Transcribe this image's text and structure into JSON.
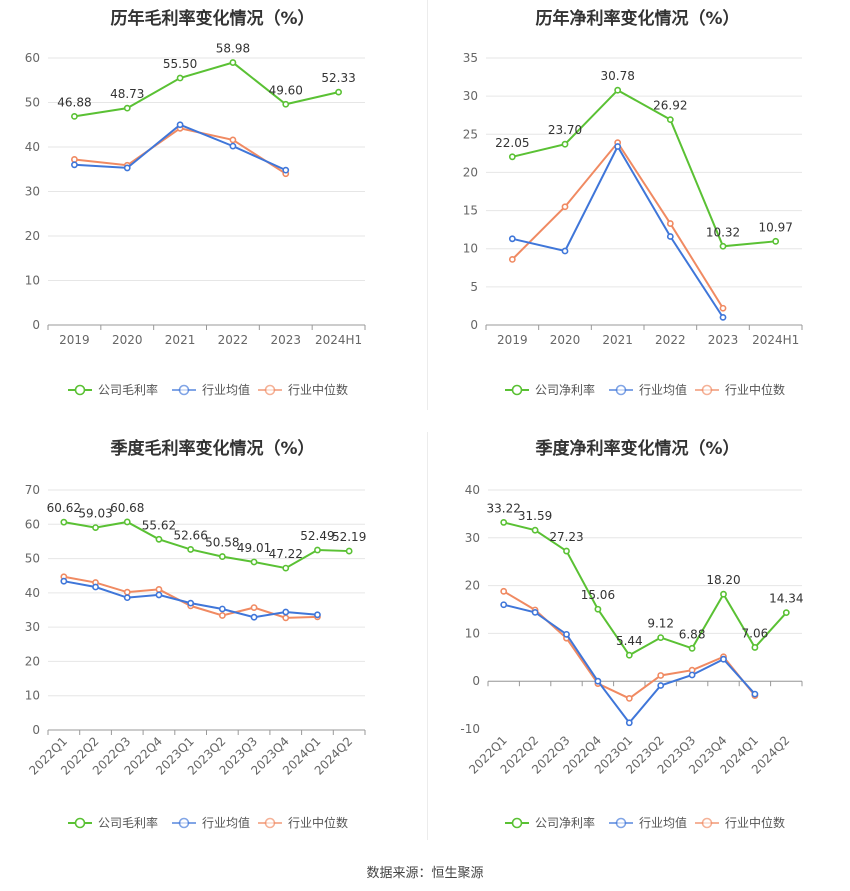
{
  "colors": {
    "company": "#5ac134",
    "industry_avg": "#3f76d9",
    "industry_median": "#f08a62"
  },
  "source_text": "数据来源：恒生聚源",
  "chart_data": [
    {
      "type": "line",
      "title": "历年毛利率变化情况（%）",
      "categories": [
        "2019",
        "2020",
        "2021",
        "2022",
        "2023",
        "2024H1"
      ],
      "ylim": [
        0,
        60
      ],
      "yticks": [
        0,
        10,
        20,
        30,
        40,
        50,
        60
      ],
      "series": [
        {
          "name": "公司毛利率",
          "values": [
            46.88,
            48.73,
            55.5,
            58.98,
            49.6,
            52.33
          ],
          "labels": [
            "46.88",
            "48.73",
            "55.50",
            "58.98",
            "49.60",
            "52.33"
          ]
        },
        {
          "name": "行业均值",
          "values": [
            36.0,
            35.3,
            45.0,
            40.2,
            34.8,
            null
          ]
        },
        {
          "name": "行业中位数",
          "values": [
            37.2,
            35.9,
            44.2,
            41.6,
            34.0,
            null
          ]
        }
      ],
      "legend": "bottom",
      "rotate_x": false
    },
    {
      "type": "line",
      "title": "历年净利率变化情况（%）",
      "categories": [
        "2019",
        "2020",
        "2021",
        "2022",
        "2023",
        "2024H1"
      ],
      "ylim": [
        0,
        35
      ],
      "yticks": [
        0,
        5,
        10,
        15,
        20,
        25,
        30,
        35
      ],
      "series": [
        {
          "name": "公司净利率",
          "values": [
            22.05,
            23.7,
            30.78,
            26.92,
            10.32,
            10.97
          ],
          "labels": [
            "22.05",
            "23.70",
            "30.78",
            "26.92",
            "10.32",
            "10.97"
          ]
        },
        {
          "name": "行业均值",
          "values": [
            11.3,
            9.7,
            23.4,
            11.6,
            1.0,
            null
          ]
        },
        {
          "name": "行业中位数",
          "values": [
            8.6,
            15.5,
            23.9,
            13.3,
            2.2,
            null
          ]
        }
      ],
      "legend": "bottom",
      "rotate_x": false
    },
    {
      "type": "line",
      "title": "季度毛利率变化情况（%）",
      "categories": [
        "2022Q1",
        "2022Q2",
        "2022Q3",
        "2022Q4",
        "2023Q1",
        "2023Q2",
        "2023Q3",
        "2023Q4",
        "2024Q1",
        "2024Q2"
      ],
      "ylim": [
        0,
        70
      ],
      "yticks": [
        0,
        10,
        20,
        30,
        40,
        50,
        60,
        70
      ],
      "series": [
        {
          "name": "公司毛利率",
          "values": [
            60.62,
            59.03,
            60.68,
            55.62,
            52.66,
            50.58,
            49.01,
            47.22,
            52.49,
            52.19
          ],
          "labels": [
            "60.62",
            "59.03",
            "60.68",
            "55.62",
            "52.66",
            "50.58",
            "49.01",
            "47.22",
            "52.49",
            "52.19"
          ]
        },
        {
          "name": "行业均值",
          "values": [
            43.4,
            41.7,
            38.6,
            39.4,
            37.0,
            35.3,
            32.9,
            34.4,
            33.6,
            null
          ]
        },
        {
          "name": "行业中位数",
          "values": [
            44.7,
            43.0,
            40.2,
            41.0,
            36.2,
            33.4,
            35.7,
            32.7,
            33.0,
            null
          ]
        }
      ],
      "legend": "bottom",
      "rotate_x": true
    },
    {
      "type": "line",
      "title": "季度净利率变化情况（%）",
      "categories": [
        "2022Q1",
        "2022Q2",
        "2022Q3",
        "2022Q4",
        "2023Q1",
        "2023Q2",
        "2023Q3",
        "2023Q4",
        "2024Q1",
        "2024Q2"
      ],
      "ylim": [
        -10,
        40
      ],
      "yticks": [
        -10,
        0,
        10,
        20,
        30,
        40
      ],
      "series": [
        {
          "name": "公司净利率",
          "values": [
            33.22,
            31.59,
            27.23,
            15.06,
            5.44,
            9.12,
            6.88,
            18.2,
            7.06,
            14.34
          ],
          "labels": [
            "33.22",
            "31.59",
            "27.23",
            "15.06",
            "5.44",
            "9.12",
            "6.88",
            "18.20",
            "7.06",
            "14.34"
          ]
        },
        {
          "name": "行业均值",
          "values": [
            16.0,
            14.4,
            9.8,
            0.0,
            -8.7,
            -0.9,
            1.3,
            4.6,
            -2.7,
            null
          ]
        },
        {
          "name": "行业中位数",
          "values": [
            18.8,
            14.9,
            9.0,
            -0.5,
            -3.6,
            1.2,
            2.3,
            5.1,
            -3.0,
            null
          ]
        }
      ],
      "legend": "bottom",
      "rotate_x": true
    }
  ]
}
